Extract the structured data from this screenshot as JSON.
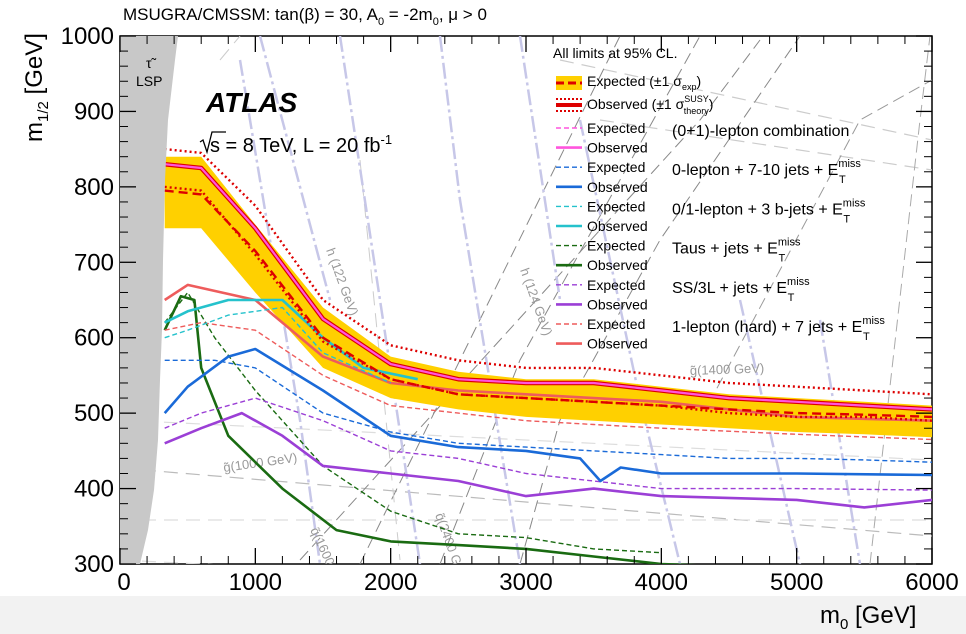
{
  "chart_data": {
    "type": "line",
    "title": "MSUGRA/CMSSM: tan(β) = 30, A",
    "title_sub": "0",
    "title_tail": " = -2m",
    "title_sub2": "0",
    "title_end": ", μ > 0",
    "xlabel": "m",
    "xlabel_sub": "0",
    "xlabel_unit": " [GeV]",
    "ylabel": "m",
    "ylabel_sub": "1/2",
    "ylabel_unit": " [GeV]",
    "xlim": [
      0,
      6000
    ],
    "ylim": [
      300,
      1000
    ],
    "xticks": [
      "0",
      "1000",
      "2000",
      "3000",
      "4000",
      "5000",
      "6000"
    ],
    "yticks": [
      "300",
      "400",
      "500",
      "600",
      "700",
      "800",
      "900",
      "1000"
    ],
    "atlas_label": "ATLAS",
    "energy_label": "s = 8 TeV,  L = 20 fb",
    "lumi_sup": "-1",
    "limits_note": "All limits at 95% CL.",
    "lsp_label": "LSP",
    "lsp_symbol": "τ̃",
    "colors": {
      "band": "#ffd000",
      "combined": "#ff55dd",
      "zero_lepton": "#1a6ad8",
      "bjets": "#25c2cc",
      "taus": "#1a6b12",
      "ss3l": "#9b3fd6",
      "one_lepton": "#ee5c5c",
      "observed_theory": "#dd0000",
      "expected_main": "#dd0000"
    },
    "legend_top": [
      {
        "label": "Expected (±1 σ",
        "sub": "exp",
        "tail": ")"
      },
      {
        "label": "Observed (±1 σ",
        "sup": "SUSY",
        "sub": "theory",
        "tail": ")"
      }
    ],
    "legend_rows": [
      {
        "style": "Expected",
        "color": "#ff55dd",
        "dashed": true
      },
      {
        "style": "Observed",
        "color": "#ff55dd",
        "dashed": false
      },
      {
        "style": "Expected",
        "color": "#1a6ad8",
        "dashed": true
      },
      {
        "style": "Observed",
        "color": "#1a6ad8",
        "dashed": false
      },
      {
        "style": "Expected",
        "color": "#25c2cc",
        "dashed": true
      },
      {
        "style": "Observed",
        "color": "#25c2cc",
        "dashed": false
      },
      {
        "style": "Expected",
        "color": "#1a6b12",
        "dashed": true
      },
      {
        "style": "Observed",
        "color": "#1a6b12",
        "dashed": false
      },
      {
        "style": "Expected",
        "color": "#9b3fd6",
        "dashed": true
      },
      {
        "style": "Observed",
        "color": "#9b3fd6",
        "dashed": false
      },
      {
        "style": "Expected",
        "color": "#ee5c5c",
        "dashed": true
      },
      {
        "style": "Observed",
        "color": "#ee5c5c",
        "dashed": false
      }
    ],
    "analyses": [
      {
        "label": "(0+1)-lepton combination"
      },
      {
        "label": "0-lepton + 7-10 jets + E",
        "sup": "miss",
        "sub": "T"
      },
      {
        "label": "0/1-lepton + 3 b-jets + E",
        "sup": "miss",
        "sub": "T"
      },
      {
        "label": "Taus + jets + E",
        "sup": "miss",
        "sub": "T"
      },
      {
        "label": "SS/3L + jets + E",
        "sup": "miss",
        "sub": "T"
      },
      {
        "label": "1-lepton (hard) + 7 jets + E",
        "sup": "miss",
        "sub": "T"
      }
    ],
    "contour_labels": [
      {
        "text": "g̃(1000 GeV)"
      },
      {
        "text": "q̃(1600 GeV)"
      },
      {
        "text": "q̃(2400 GeV)"
      },
      {
        "text": "g̃(1400 GeV)"
      },
      {
        "text": "h (122 GeV)"
      },
      {
        "text": "h (124 GeV)"
      }
    ],
    "series": [
      {
        "name": "band_upper",
        "x": [
          330,
          600,
          1000,
          1500,
          2000,
          2500,
          3000,
          3500,
          4000,
          4500,
          5000,
          5500,
          6000
        ],
        "y": [
          840,
          840,
          750,
          640,
          575,
          555,
          545,
          545,
          535,
          525,
          520,
          515,
          510
        ]
      },
      {
        "name": "band_lower",
        "x": [
          330,
          600,
          1000,
          1500,
          2000,
          2500,
          3000,
          3500,
          4000,
          4500,
          5000,
          5500,
          6000
        ],
        "y": [
          745,
          745,
          660,
          560,
          520,
          505,
          495,
          490,
          485,
          480,
          475,
          472,
          468
        ]
      },
      {
        "name": "expected_comb",
        "x": [
          330,
          600,
          1000,
          1500,
          2000,
          2500,
          3000,
          3500,
          4000,
          4500,
          5000,
          5500,
          6000
        ],
        "y": [
          795,
          790,
          715,
          600,
          545,
          525,
          520,
          515,
          510,
          505,
          500,
          498,
          495
        ]
      },
      {
        "name": "observed_comb",
        "x": [
          330,
          600,
          1000,
          1500,
          2000,
          2500,
          3000,
          3500,
          4000,
          4500,
          5000,
          5500,
          6000
        ],
        "y": [
          830,
          825,
          745,
          625,
          565,
          545,
          540,
          540,
          530,
          520,
          515,
          510,
          505
        ]
      },
      {
        "name": "observed_up",
        "x": [
          330,
          600,
          1000,
          1500,
          2000,
          2500,
          3000,
          3500,
          4000,
          4500,
          5000,
          5500,
          6000
        ],
        "y": [
          850,
          845,
          775,
          650,
          590,
          570,
          560,
          560,
          550,
          540,
          535,
          530,
          525
        ]
      },
      {
        "name": "observed_down",
        "x": [
          330,
          600,
          1000,
          1500,
          2000,
          2500,
          3000,
          3500,
          4000,
          4500,
          5000,
          5500,
          6000
        ],
        "y": [
          800,
          795,
          710,
          595,
          545,
          525,
          520,
          515,
          510,
          500,
          495,
          495,
          490
        ]
      },
      {
        "name": "zl_exp",
        "x": [
          330,
          700,
          1000,
          1500,
          2000,
          2500,
          3000,
          3500,
          4000,
          4500,
          5000,
          5500,
          6000
        ],
        "y": [
          570,
          570,
          560,
          500,
          475,
          460,
          455,
          450,
          445,
          440,
          440,
          438,
          435
        ]
      },
      {
        "name": "zl_obs",
        "x": [
          330,
          500,
          800,
          1000,
          1500,
          2000,
          2500,
          3000,
          3400,
          3550,
          3700,
          4000,
          5000,
          6000
        ],
        "y": [
          500,
          535,
          575,
          585,
          530,
          470,
          455,
          450,
          440,
          410,
          428,
          420,
          420,
          418
        ]
      },
      {
        "name": "bj_exp",
        "x": [
          330,
          500,
          800,
          1200,
          1500,
          2000
        ],
        "y": [
          600,
          610,
          630,
          640,
          580,
          540
        ]
      },
      {
        "name": "bj_obs",
        "x": [
          330,
          500,
          800,
          1200,
          1500,
          1800,
          2200
        ],
        "y": [
          620,
          635,
          650,
          650,
          600,
          560,
          545
        ]
      },
      {
        "name": "tau_exp",
        "x": [
          330,
          500,
          700,
          1000,
          1500,
          2000,
          2500,
          3000,
          3500,
          4000
        ],
        "y": [
          620,
          660,
          600,
          530,
          430,
          370,
          340,
          335,
          320,
          315
        ]
      },
      {
        "name": "tau_obs",
        "x": [
          330,
          450,
          550,
          600,
          800,
          1200,
          1600,
          2000,
          2500,
          3000,
          3500,
          4000,
          4300
        ],
        "y": [
          610,
          655,
          650,
          560,
          470,
          400,
          345,
          330,
          325,
          320,
          310,
          300,
          298
        ]
      },
      {
        "name": "ss3l_exp",
        "x": [
          330,
          600,
          1000,
          1500,
          2000,
          2500,
          3000,
          3500,
          4000,
          5000,
          6000
        ],
        "y": [
          480,
          500,
          520,
          490,
          450,
          440,
          420,
          410,
          400,
          400,
          398
        ]
      },
      {
        "name": "ss3l_obs",
        "x": [
          330,
          600,
          900,
          1200,
          1500,
          2000,
          2500,
          3000,
          3500,
          4000,
          5000,
          5500,
          6000
        ],
        "y": [
          460,
          480,
          500,
          470,
          430,
          420,
          410,
          390,
          400,
          390,
          385,
          375,
          385
        ]
      },
      {
        "name": "ol_exp",
        "x": [
          330,
          600,
          1000,
          1500,
          2000,
          2500,
          3000,
          3500,
          4000,
          5000,
          6000
        ],
        "y": [
          610,
          620,
          610,
          550,
          510,
          500,
          490,
          485,
          480,
          472,
          465
        ]
      },
      {
        "name": "ol_obs",
        "x": [
          330,
          500,
          1000,
          1500,
          2000,
          2500,
          3000,
          3500,
          4000,
          5000,
          6000
        ],
        "y": [
          650,
          670,
          650,
          575,
          540,
          530,
          525,
          520,
          515,
          495,
          490
        ]
      }
    ]
  }
}
